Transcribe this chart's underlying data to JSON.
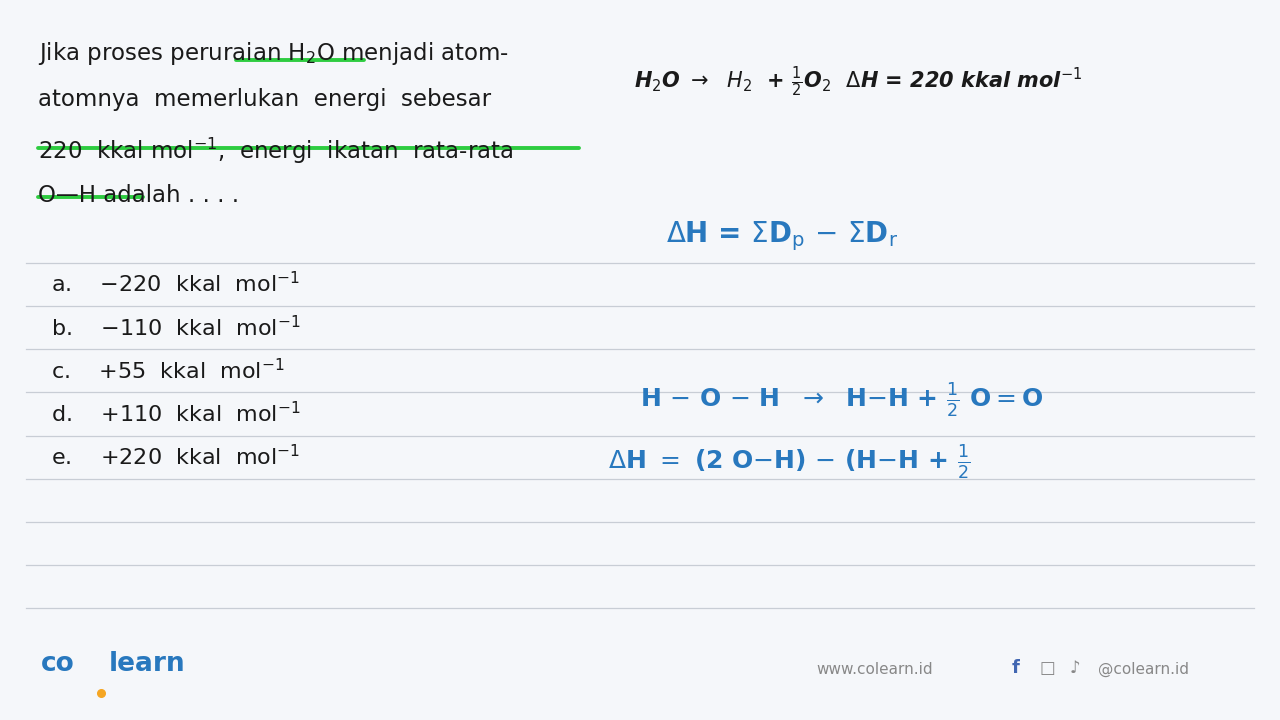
{
  "bg_color": "#f5f7fa",
  "text_color_black": "#1a1a1a",
  "text_color_blue": "#2878be",
  "green_color": "#2ecc40",
  "logo_blue": "#2878be",
  "logo_dot_yellow": "#f5a623",
  "line_color": "#c8cdd5",
  "q_line1": "Jika proses peruraian H$_2$O menjadi atom-",
  "q_line2": "atomnya  memerlukan  energi  sebesar",
  "q_line3": "220  kkal mol$^{-1}$,  energi  ikatan  rata-rata",
  "q_line4": "O—H adalah . . . .",
  "opt_a": "a.    −220  kkal  mol$^{-1}$",
  "opt_b": "b.    −110  kkal  mol$^{-1}$",
  "opt_c": "c.    +55  kkal  mol$^{-1}$",
  "opt_d": "d.    +110  kkal  mol$^{-1}$",
  "opt_e": "e.    +220  kkal  mol$^{-1}$",
  "eq1": "H$_2$O $\\rightarrow$  $H_2$  + $\\frac{1}{2}$O$_2$  $\\Delta$H = 220 kkal mol$^{-1}$",
  "eq2": "$\\Delta$H = $\\Sigma$D$_p$ $-$ $\\Sigma$D$_r$",
  "eq3": "H $-$ O $-$ H  $\\rightarrow$  H$-$H + $\\frac{1}{2}$ O$=$O",
  "eq4": "$\\Delta$H $=$ (2 O$-$H) $-$ (H$-$H + $\\frac{1}{2}$",
  "footer_left": "co learn",
  "footer_website": "www.colearn.id",
  "footer_social": "@colearn.id"
}
